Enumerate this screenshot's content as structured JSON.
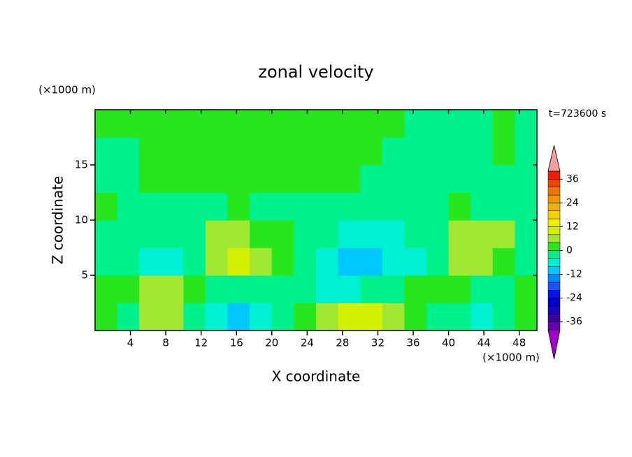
{
  "chart_data": {
    "type": "contour",
    "title": "zonal velocity",
    "y_unit": "(×1000 m)",
    "x_unit": "(×1000 m)",
    "time_label": "t=723600 s",
    "xlabel": "X coordinate",
    "ylabel": "Z coordinate",
    "xlim": [
      0,
      50
    ],
    "ylim": [
      0,
      20
    ],
    "xticks": [
      4,
      8,
      12,
      16,
      20,
      24,
      28,
      32,
      36,
      40,
      44,
      48
    ],
    "yticks": [
      5,
      10,
      15
    ],
    "x": [
      1.25,
      3.75,
      6.25,
      8.75,
      11.25,
      13.75,
      16.25,
      18.75,
      21.25,
      23.75,
      26.25,
      28.75,
      31.25,
      33.75,
      36.25,
      38.75,
      41.25,
      43.75,
      46.25,
      48.75
    ],
    "y": [
      1.25,
      3.75,
      6.25,
      8.75,
      11.25,
      13.75,
      16.25,
      18.75
    ],
    "values": [
      [
        2,
        -2,
        6,
        6,
        -2,
        -6,
        -10,
        -6,
        -2,
        2,
        6,
        10,
        10,
        6,
        2,
        -2,
        -2,
        -6,
        -2,
        2
      ],
      [
        2,
        2,
        6,
        6,
        2,
        -2,
        -2,
        -2,
        -2,
        -2,
        -6,
        -6,
        -2,
        -2,
        2,
        2,
        2,
        -2,
        -2,
        2
      ],
      [
        -2,
        -2,
        -6,
        -6,
        -2,
        6,
        10,
        6,
        2,
        -2,
        -6,
        -10,
        -10,
        -6,
        -6,
        -2,
        6,
        6,
        2,
        -2
      ],
      [
        -2,
        -2,
        -2,
        -2,
        -2,
        6,
        6,
        2,
        2,
        -2,
        -2,
        -6,
        -6,
        -6,
        -2,
        -2,
        6,
        6,
        6,
        -2
      ],
      [
        2,
        -2,
        -2,
        -2,
        -2,
        -2,
        2,
        -2,
        -2,
        -2,
        -2,
        -2,
        -2,
        -2,
        -2,
        -2,
        2,
        -2,
        -2,
        -2
      ],
      [
        -2,
        -2,
        2,
        2,
        2,
        2,
        2,
        2,
        2,
        2,
        2,
        2,
        -2,
        -2,
        -2,
        -2,
        -2,
        -2,
        -2,
        -2
      ],
      [
        -2,
        -2,
        2,
        2,
        2,
        2,
        2,
        2,
        2,
        2,
        2,
        2,
        2,
        -2,
        -2,
        -2,
        -2,
        -2,
        2,
        -2
      ],
      [
        2,
        2,
        2,
        2,
        2,
        2,
        2,
        2,
        2,
        2,
        2,
        2,
        2,
        2,
        -2,
        -2,
        -2,
        -2,
        2,
        -2
      ]
    ],
    "levels": [
      -40,
      -36,
      -32,
      -28,
      -24,
      -20,
      -16,
      -12,
      -8,
      -4,
      0,
      4,
      8,
      12,
      16,
      20,
      24,
      28,
      32,
      36,
      40
    ],
    "colorbar_ticks": [
      -36,
      -24,
      -12,
      0,
      12,
      24,
      36
    ],
    "colors": [
      "#a000c8",
      "#6400b4",
      "#3c00a0",
      "#1e00c8",
      "#0000d2",
      "#0014f0",
      "#1e50ff",
      "#008cff",
      "#00c8ff",
      "#00f0d2",
      "#00f08c",
      "#28e61e",
      "#a0e632",
      "#d2f000",
      "#f0f000",
      "#f0d200",
      "#f0b400",
      "#f09600",
      "#f07800",
      "#f04600",
      "#f01e00",
      "#f0a0a0"
    ]
  }
}
